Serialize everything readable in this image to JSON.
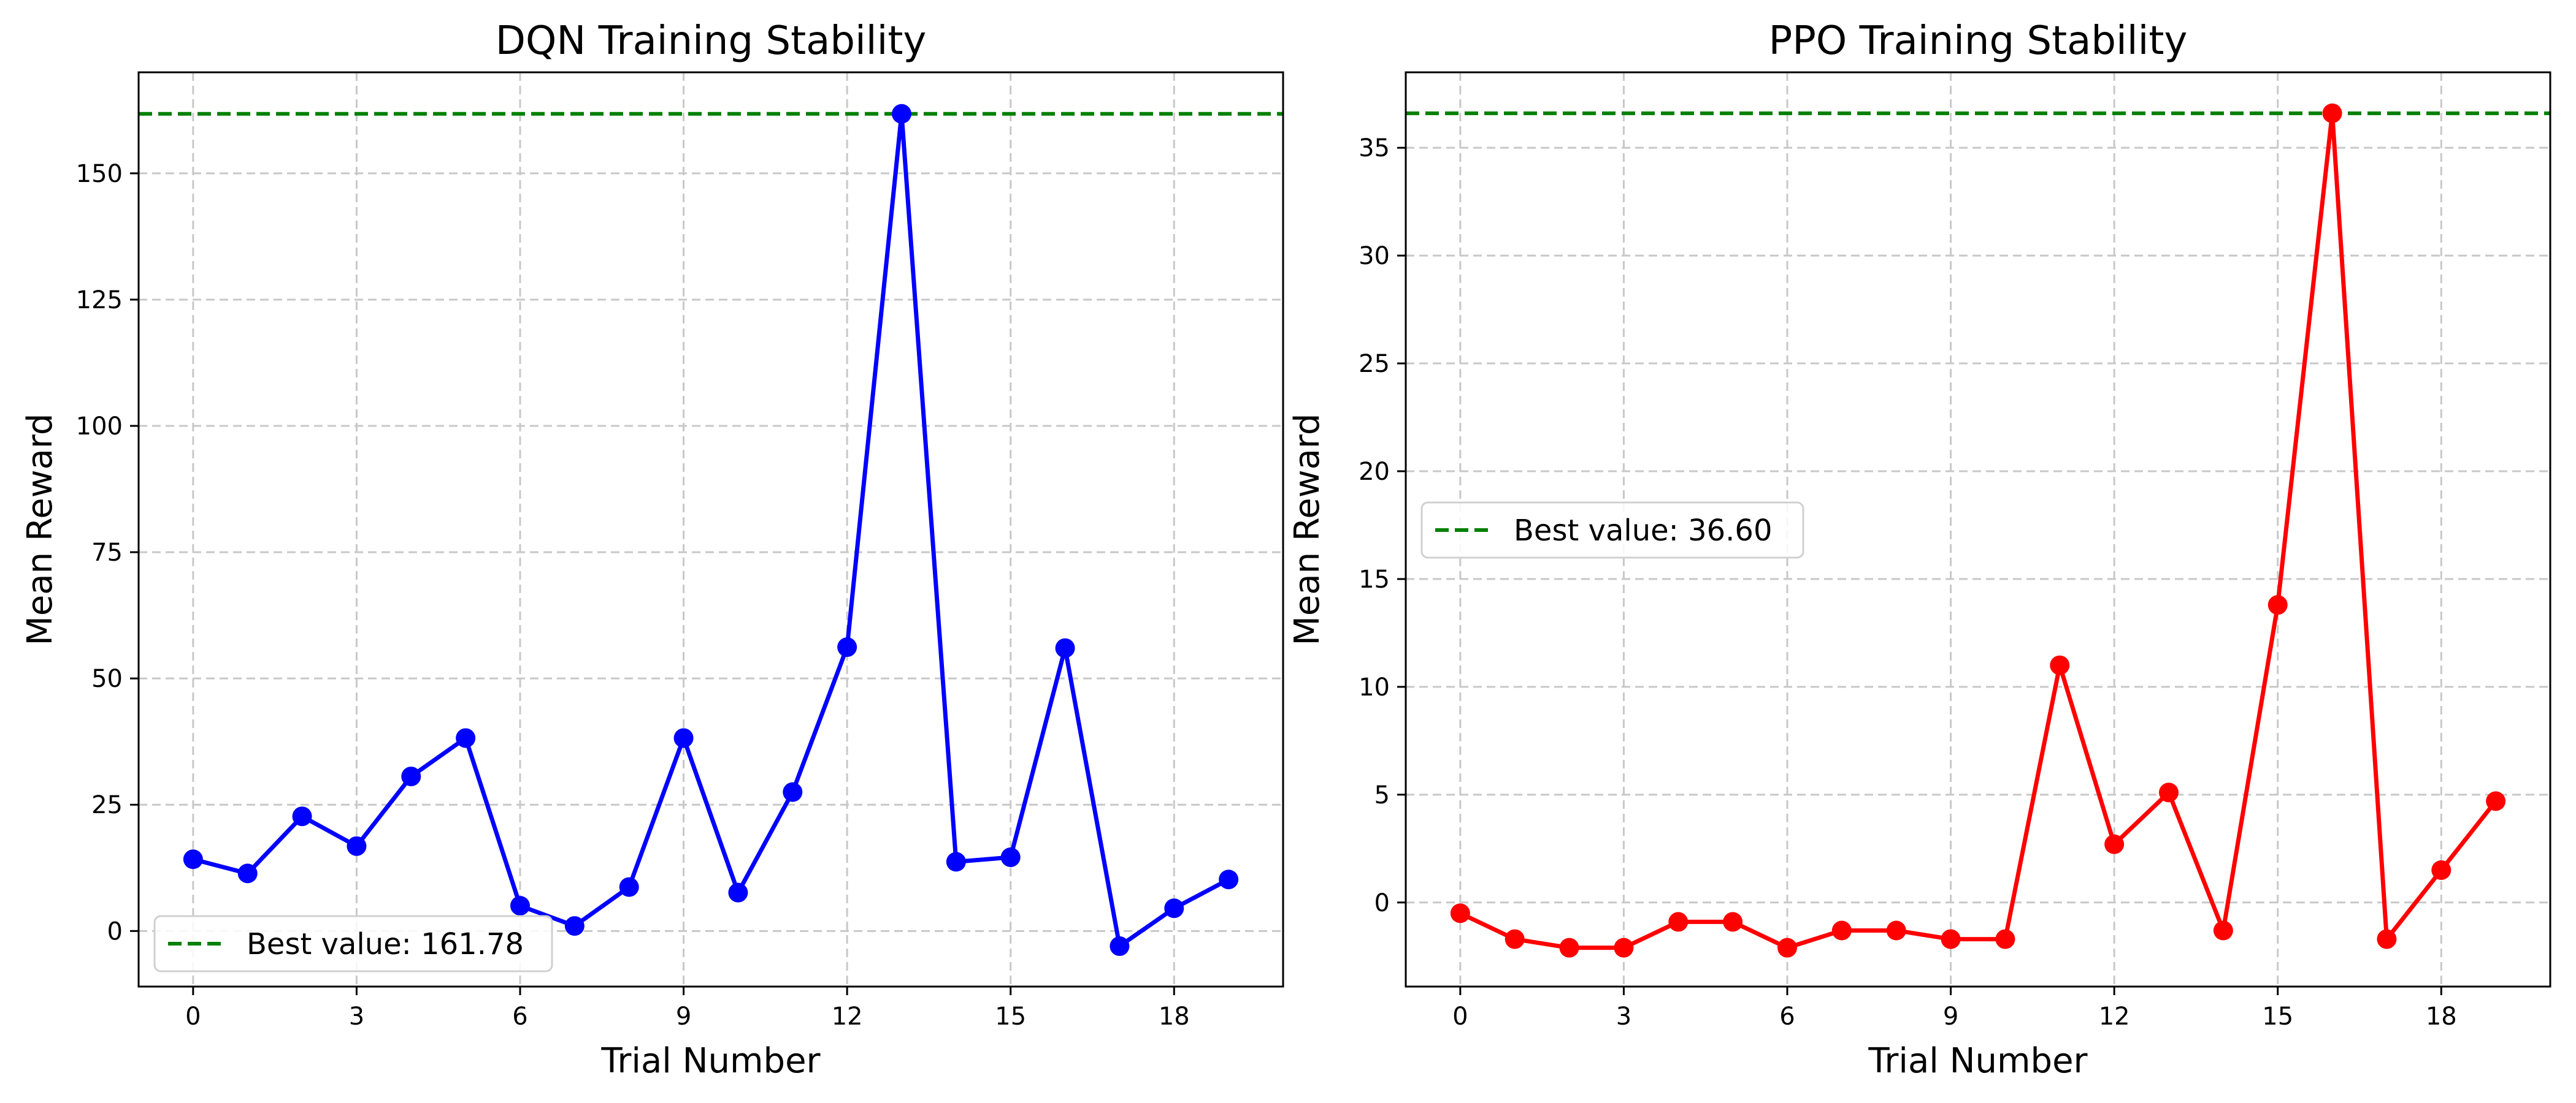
{
  "chart_data": [
    {
      "type": "line",
      "title": "DQN Training Stability",
      "xlabel": "Trial Number",
      "ylabel": "Mean Reward",
      "xlim": [
        -1,
        20
      ],
      "ylim": [
        -11,
        170
      ],
      "xticks": [
        0,
        3,
        6,
        9,
        12,
        15,
        18
      ],
      "yticks": [
        0,
        25,
        50,
        75,
        100,
        125,
        150
      ],
      "grid": true,
      "legend_position": "lower-left",
      "series": [
        {
          "x": [
            0,
            1,
            2,
            3,
            4,
            5,
            6,
            7,
            8,
            9,
            10,
            11,
            12,
            13,
            14,
            15,
            16,
            17,
            18,
            19
          ],
          "values": [
            14.2,
            11.4,
            22.7,
            16.8,
            30.6,
            38.2,
            5.0,
            1.0,
            8.7,
            38.2,
            7.6,
            27.5,
            56.2,
            161.78,
            13.7,
            14.6,
            56.0,
            -3.0,
            4.5,
            10.2
          ],
          "color": "#0000ff"
        }
      ],
      "best_value": 161.78,
      "best_label": "Best value: 161.78",
      "best_color": "#008000"
    },
    {
      "type": "line",
      "title": "PPO Training Stability",
      "xlabel": "Trial Number",
      "ylabel": "Mean Reward",
      "xlim": [
        -1,
        20
      ],
      "ylim": [
        -3.9,
        38.5
      ],
      "xticks": [
        0,
        3,
        6,
        9,
        12,
        15,
        18
      ],
      "yticks": [
        0,
        5,
        10,
        15,
        20,
        25,
        30,
        35
      ],
      "grid": true,
      "legend_position": "center-left",
      "series": [
        {
          "x": [
            0,
            1,
            2,
            3,
            4,
            5,
            6,
            7,
            8,
            9,
            10,
            11,
            12,
            13,
            14,
            15,
            16,
            17,
            18,
            19
          ],
          "values": [
            -0.5,
            -1.7,
            -2.1,
            -2.1,
            -0.9,
            -0.9,
            -2.1,
            -1.3,
            -1.3,
            -1.7,
            -1.7,
            11.0,
            2.7,
            5.1,
            -1.3,
            13.8,
            36.6,
            -1.7,
            1.5,
            4.7
          ],
          "color": "#ff0000"
        }
      ],
      "best_value": 36.6,
      "best_label": "Best value: 36.60",
      "best_color": "#008000"
    }
  ]
}
